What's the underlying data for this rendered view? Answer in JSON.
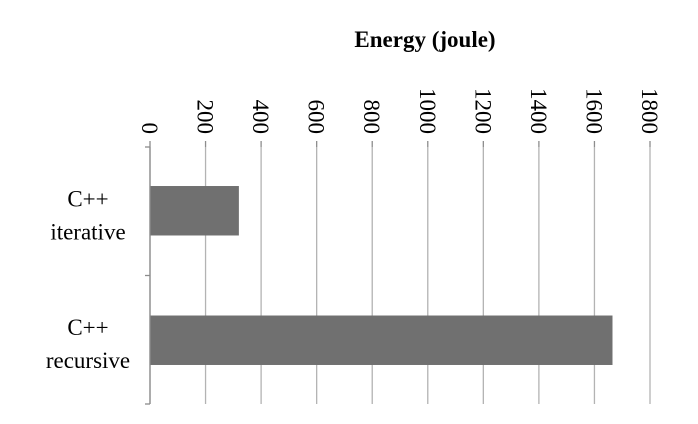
{
  "chart_data": {
    "type": "bar",
    "orientation": "horizontal",
    "title": "Energy (joule)",
    "xlabel": "Energy (joule)",
    "ylabel": "",
    "categories": [
      [
        "C++",
        "iterative"
      ],
      [
        "C++",
        "recursive"
      ]
    ],
    "values": [
      320,
      1665
    ],
    "xlim": [
      0,
      1800
    ],
    "x_ticks": [
      0,
      200,
      400,
      600,
      800,
      1000,
      1200,
      1400,
      1600,
      1800
    ],
    "x_axis_position": "top",
    "tick_label_rotation": "90",
    "grid": true,
    "legend": "none",
    "colors": {
      "bar": "#707070",
      "grid": "#b3b3b3",
      "axis": "#8c8c8c"
    }
  }
}
